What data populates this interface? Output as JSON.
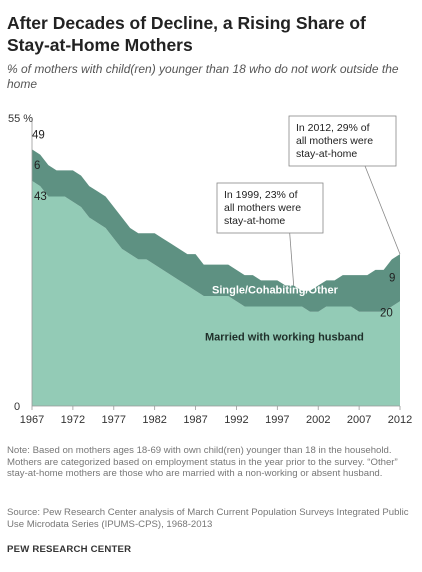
{
  "title": "After Decades of Decline, a Rising Share of Stay-at-Home Mothers",
  "subtitle": "% of mothers with child(ren) younger than 18 who do not work outside the home",
  "chart_data": {
    "type": "area",
    "stacked": true,
    "x": [
      1967,
      1968,
      1969,
      1970,
      1971,
      1972,
      1973,
      1974,
      1975,
      1976,
      1977,
      1978,
      1979,
      1980,
      1981,
      1982,
      1983,
      1984,
      1985,
      1986,
      1987,
      1988,
      1989,
      1990,
      1991,
      1992,
      1993,
      1994,
      1995,
      1996,
      1997,
      1998,
      1999,
      2000,
      2001,
      2002,
      2003,
      2004,
      2005,
      2006,
      2007,
      2008,
      2009,
      2010,
      2011,
      2012
    ],
    "series": [
      {
        "name": "Married with working husband",
        "color": "#93cbb6",
        "values": [
          43,
          42,
          40,
          40,
          40,
          39,
          38,
          36,
          35,
          34,
          32,
          30,
          29,
          28,
          28,
          27,
          26,
          25,
          24,
          23,
          22,
          21,
          21,
          21,
          21,
          20,
          19,
          19,
          19,
          19,
          19,
          19,
          19,
          19,
          18,
          18,
          19,
          19,
          19,
          19,
          18,
          18,
          18,
          18,
          19,
          20
        ]
      },
      {
        "name": "Single/Cohabiting/Other",
        "color": "#5e9182",
        "values": [
          6,
          6,
          6,
          5,
          5,
          6,
          6,
          6,
          6,
          6,
          6,
          6,
          5,
          5,
          5,
          6,
          6,
          6,
          6,
          6,
          7,
          6,
          6,
          6,
          6,
          6,
          6,
          6,
          5,
          5,
          5,
          4,
          4,
          3,
          4,
          5,
          5,
          5,
          6,
          6,
          7,
          7,
          8,
          8,
          9,
          9
        ]
      }
    ],
    "xticks": [
      "1967",
      "1972",
      "1977",
      "1982",
      "1987",
      "1992",
      "1997",
      "2002",
      "2007",
      "2012"
    ],
    "ylim": [
      0,
      55
    ],
    "yticks": [
      "0",
      "55 %"
    ],
    "start_labels": [
      "49",
      "6",
      "43"
    ],
    "end_labels": [
      "9",
      "20"
    ],
    "annotations": [
      {
        "year": 1999,
        "lines": [
          "In 1999, 23% of",
          "all mothers were",
          "stay-at-home"
        ]
      },
      {
        "year": 2012,
        "lines": [
          "In 2012, 29% of",
          "all mothers were",
          "stay-at-home"
        ]
      }
    ],
    "colors": {
      "married": "#93cbb6",
      "other": "#5e9182",
      "single_label": "#ffffff",
      "married_label": "#1f2f2a"
    }
  },
  "note": "Note: Based on mothers ages 18-69 with own child(ren) younger than 18 in the household. Mothers are categorized based on employment status in the year prior to the survey. “Other” stay-at-home mothers are those who are married with a non-working or absent husband.",
  "source": "Source: Pew Research Center analysis of March Current Population Surveys Integrated Public Use Microdata Series (IPUMS-CPS), 1968-2013",
  "brand": "PEW RESEARCH CENTER"
}
